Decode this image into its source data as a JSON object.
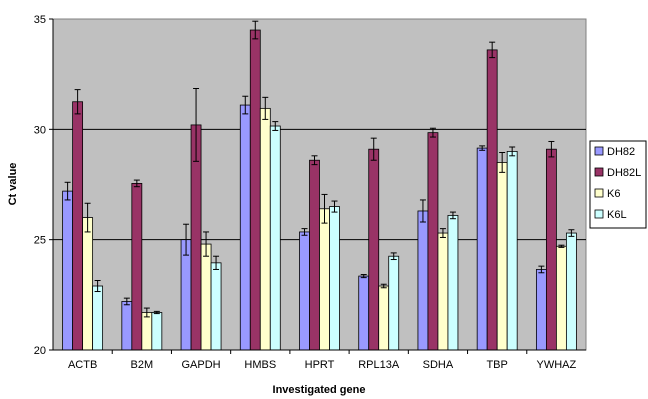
{
  "chart_data": {
    "type": "bar",
    "xlabel": "Investigated gene",
    "ylabel": "Ct value",
    "ylim": [
      20,
      35
    ],
    "yticks": [
      "20",
      "25",
      "30",
      "35"
    ],
    "grid": true,
    "legend_position": "right",
    "categories": [
      "ACTB",
      "B2M",
      "GAPDH",
      "HMBS",
      "HPRT",
      "RPL13A",
      "SDHA",
      "TBP",
      "YWHAZ"
    ],
    "series": [
      {
        "name": "DH82",
        "color": "#9999ff",
        "values": [
          27.2,
          22.2,
          25.0,
          31.1,
          25.35,
          23.35,
          26.3,
          29.15,
          23.65
        ],
        "errors": [
          0.4,
          0.15,
          0.7,
          0.4,
          0.15,
          0.07,
          0.5,
          0.1,
          0.15
        ]
      },
      {
        "name": "DH82L",
        "color": "#993366",
        "values": [
          31.25,
          27.55,
          30.2,
          34.5,
          28.6,
          29.1,
          29.85,
          33.6,
          29.1
        ],
        "errors": [
          0.55,
          0.15,
          1.65,
          0.4,
          0.2,
          0.5,
          0.2,
          0.35,
          0.35
        ]
      },
      {
        "name": "K6",
        "color": "#ffffcc",
        "values": [
          26.0,
          21.7,
          24.8,
          30.95,
          26.4,
          22.9,
          25.3,
          28.5,
          24.7
        ],
        "errors": [
          0.65,
          0.2,
          0.55,
          0.5,
          0.65,
          0.08,
          0.2,
          0.45,
          0.05
        ]
      },
      {
        "name": "K6L",
        "color": "#ccffff",
        "values": [
          22.9,
          21.7,
          23.95,
          30.15,
          26.5,
          24.25,
          26.1,
          29.0,
          25.3
        ],
        "errors": [
          0.25,
          0.05,
          0.3,
          0.2,
          0.25,
          0.15,
          0.15,
          0.2,
          0.15
        ]
      }
    ]
  }
}
